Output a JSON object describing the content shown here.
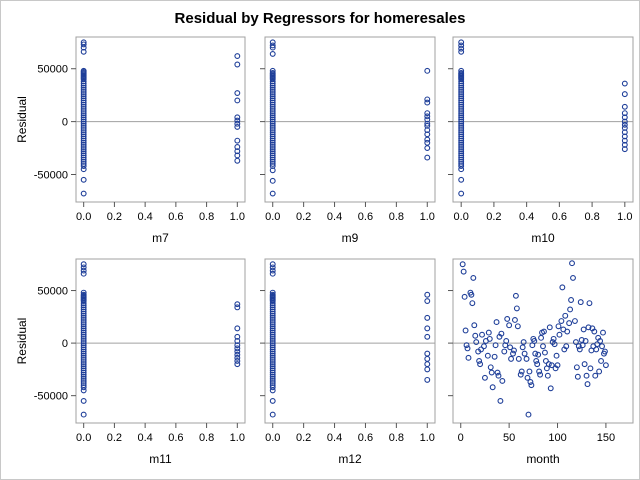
{
  "title": "Residual by Regressors for homeresales",
  "chart_data": [
    {
      "type": "scatter",
      "xlabel": "m7",
      "ylabel": "Residual",
      "xlim": [
        -0.05,
        1.05
      ],
      "ylim": [
        -76000,
        80000
      ],
      "xticks": [
        "0.0",
        "0.2",
        "0.4",
        "0.6",
        "0.8",
        "1.0"
      ],
      "yticks": [
        "-50000",
        "0",
        "50000"
      ],
      "reference_line_y": 0,
      "points": {
        "x0": [
          75000,
          73000,
          70000,
          66000,
          48000,
          47000,
          46000,
          45000,
          44000,
          43000,
          42000,
          41000,
          40000,
          38000,
          36000,
          34000,
          32000,
          30000,
          28000,
          26000,
          24000,
          22000,
          20000,
          18000,
          16000,
          14000,
          12000,
          10000,
          8000,
          6000,
          4000,
          2000,
          0,
          -2000,
          -4000,
          -6000,
          -8000,
          -10000,
          -12000,
          -14000,
          -16000,
          -18000,
          -20000,
          -22000,
          -24000,
          -26000,
          -28000,
          -30000,
          -32000,
          -34000,
          -36000,
          -38000,
          -40000,
          -42000,
          -45000,
          -55000,
          -68000
        ],
        "x1": [
          62000,
          54000,
          27000,
          20000,
          4000,
          1000,
          -2000,
          -5000,
          -18000,
          -24000,
          -28000,
          -32000,
          -37000
        ]
      }
    },
    {
      "type": "scatter",
      "xlabel": "m9",
      "ylabel": "",
      "xlim": [
        -0.05,
        1.05
      ],
      "ylim": [
        -76000,
        80000
      ],
      "xticks": [
        "0.0",
        "0.2",
        "0.4",
        "0.6",
        "0.8",
        "1.0"
      ],
      "yticks": [],
      "reference_line_y": 0,
      "points": {
        "x0": [
          75000,
          72000,
          70000,
          64000,
          48000,
          46000,
          45000,
          44000,
          43000,
          42000,
          41000,
          40000,
          38000,
          36000,
          34000,
          32000,
          30000,
          28000,
          26000,
          24000,
          22000,
          20000,
          18000,
          16000,
          14000,
          12000,
          10000,
          8000,
          6000,
          4000,
          2000,
          0,
          -2000,
          -4000,
          -6000,
          -8000,
          -10000,
          -12000,
          -14000,
          -16000,
          -18000,
          -20000,
          -22000,
          -24000,
          -26000,
          -28000,
          -30000,
          -32000,
          -34000,
          -36000,
          -38000,
          -40000,
          -42000,
          -46000,
          -56000,
          -68000
        ],
        "x1": [
          48000,
          21000,
          18000,
          8000,
          5000,
          2000,
          -2000,
          -4000,
          -8000,
          -12000,
          -17000,
          -20000,
          -25000,
          -34000
        ]
      }
    },
    {
      "type": "scatter",
      "xlabel": "m10",
      "ylabel": "",
      "xlim": [
        -0.05,
        1.05
      ],
      "ylim": [
        -76000,
        80000
      ],
      "xticks": [
        "0.0",
        "0.2",
        "0.4",
        "0.6",
        "0.8",
        "1.0"
      ],
      "yticks": [],
      "reference_line_y": 0,
      "points": {
        "x0": [
          75000,
          72000,
          69000,
          66000,
          48000,
          46000,
          45000,
          44000,
          43000,
          42000,
          41000,
          40000,
          38000,
          36000,
          34000,
          32000,
          30000,
          28000,
          26000,
          24000,
          22000,
          20000,
          18000,
          16000,
          14000,
          12000,
          10000,
          8000,
          6000,
          4000,
          2000,
          0,
          -2000,
          -4000,
          -6000,
          -8000,
          -10000,
          -12000,
          -14000,
          -16000,
          -18000,
          -20000,
          -22000,
          -24000,
          -26000,
          -28000,
          -30000,
          -32000,
          -34000,
          -36000,
          -38000,
          -40000,
          -42000,
          -45000,
          -55000,
          -68000
        ],
        "x1": [
          36000,
          26000,
          14000,
          8000,
          4000,
          0,
          -3000,
          -6000,
          -10000,
          -14000,
          -18000,
          -22000,
          -26000
        ]
      }
    },
    {
      "type": "scatter",
      "xlabel": "m11",
      "ylabel": "Residual",
      "xlim": [
        -0.05,
        1.05
      ],
      "ylim": [
        -76000,
        80000
      ],
      "xticks": [
        "0.0",
        "0.2",
        "0.4",
        "0.6",
        "0.8",
        "1.0"
      ],
      "yticks": [
        "-50000",
        "0",
        "50000"
      ],
      "reference_line_y": 0,
      "points": {
        "x0": [
          75000,
          72000,
          69000,
          66000,
          48000,
          46000,
          45000,
          44000,
          43000,
          42000,
          41000,
          40000,
          38000,
          36000,
          34000,
          32000,
          30000,
          28000,
          26000,
          24000,
          22000,
          20000,
          18000,
          16000,
          14000,
          12000,
          10000,
          8000,
          6000,
          4000,
          2000,
          0,
          -2000,
          -4000,
          -6000,
          -8000,
          -10000,
          -12000,
          -14000,
          -16000,
          -18000,
          -20000,
          -22000,
          -24000,
          -26000,
          -28000,
          -30000,
          -32000,
          -34000,
          -36000,
          -38000,
          -40000,
          -42000,
          -45000,
          -55000,
          -68000
        ],
        "x1": [
          37000,
          34000,
          14000,
          6000,
          2000,
          -2000,
          -5000,
          -8000,
          -11000,
          -14000,
          -17000,
          -20000
        ]
      }
    },
    {
      "type": "scatter",
      "xlabel": "m12",
      "ylabel": "",
      "xlim": [
        -0.05,
        1.05
      ],
      "ylim": [
        -76000,
        80000
      ],
      "xticks": [
        "0.0",
        "0.2",
        "0.4",
        "0.6",
        "0.8",
        "1.0"
      ],
      "yticks": [],
      "reference_line_y": 0,
      "points": {
        "x0": [
          75000,
          72000,
          69000,
          66000,
          48000,
          46000,
          45000,
          44000,
          43000,
          42000,
          41000,
          40000,
          38000,
          36000,
          34000,
          32000,
          30000,
          28000,
          26000,
          24000,
          22000,
          20000,
          18000,
          16000,
          14000,
          12000,
          10000,
          8000,
          6000,
          4000,
          2000,
          0,
          -2000,
          -4000,
          -6000,
          -8000,
          -10000,
          -12000,
          -14000,
          -16000,
          -18000,
          -20000,
          -22000,
          -24000,
          -26000,
          -28000,
          -30000,
          -32000,
          -34000,
          -36000,
          -38000,
          -40000,
          -42000,
          -45000,
          -55000,
          -68000
        ],
        "x1": [
          46000,
          40000,
          24000,
          14000,
          6000,
          -10000,
          -15000,
          -20000,
          -25000,
          -35000
        ]
      }
    },
    {
      "type": "scatter",
      "xlabel": "month",
      "ylabel": "",
      "xlim": [
        -8,
        178
      ],
      "ylim": [
        -76000,
        80000
      ],
      "xticks": [
        "0",
        "50",
        "100",
        "150"
      ],
      "xtick_values": [
        0,
        50,
        100,
        150
      ],
      "yticks": [],
      "reference_line_y": 0,
      "points_xy": [
        [
          2,
          75000
        ],
        [
          3,
          68000
        ],
        [
          4,
          44000
        ],
        [
          5,
          12000
        ],
        [
          6,
          -2000
        ],
        [
          7,
          -5000
        ],
        [
          8,
          -14000
        ],
        [
          10,
          48000
        ],
        [
          11,
          46000
        ],
        [
          12,
          38000
        ],
        [
          13,
          62000
        ],
        [
          14,
          17000
        ],
        [
          15,
          7000
        ],
        [
          16,
          1000
        ],
        [
          18,
          -8000
        ],
        [
          19,
          -17000
        ],
        [
          20,
          -20000
        ],
        [
          21,
          -6000
        ],
        [
          22,
          8000
        ],
        [
          24,
          -3000
        ],
        [
          25,
          -33000
        ],
        [
          26,
          2000
        ],
        [
          28,
          -12000
        ],
        [
          29,
          10000
        ],
        [
          30,
          4000
        ],
        [
          31,
          -23000
        ],
        [
          32,
          -28000
        ],
        [
          33,
          -42000
        ],
        [
          35,
          -13000
        ],
        [
          36,
          -2000
        ],
        [
          37,
          20000
        ],
        [
          38,
          -28000
        ],
        [
          39,
          -31000
        ],
        [
          40,
          6000
        ],
        [
          41,
          -55000
        ],
        [
          42,
          9000
        ],
        [
          43,
          -36000
        ],
        [
          45,
          -8000
        ],
        [
          46,
          -2000
        ],
        [
          47,
          2000
        ],
        [
          48,
          23000
        ],
        [
          50,
          17000
        ],
        [
          51,
          -4000
        ],
        [
          52,
          -15000
        ],
        [
          54,
          -10000
        ],
        [
          55,
          -7000
        ],
        [
          56,
          22000
        ],
        [
          57,
          45000
        ],
        [
          58,
          33000
        ],
        [
          59,
          16000
        ],
        [
          60,
          -15000
        ],
        [
          62,
          -30000
        ],
        [
          63,
          -27000
        ],
        [
          64,
          -4000
        ],
        [
          65,
          1000
        ],
        [
          66,
          -10000
        ],
        [
          68,
          -15000
        ],
        [
          69,
          -33000
        ],
        [
          70,
          -68000
        ],
        [
          71,
          -27000
        ],
        [
          72,
          -37000
        ],
        [
          73,
          -40000
        ],
        [
          74,
          -2000
        ],
        [
          75,
          4000
        ],
        [
          76,
          2000
        ],
        [
          77,
          -10000
        ],
        [
          78,
          -17000
        ],
        [
          79,
          -20000
        ],
        [
          80,
          -11000
        ],
        [
          81,
          -27000
        ],
        [
          82,
          -30000
        ],
        [
          83,
          5000
        ],
        [
          84,
          10000
        ],
        [
          85,
          -3000
        ],
        [
          86,
          11000
        ],
        [
          87,
          -9000
        ],
        [
          88,
          -17000
        ],
        [
          89,
          -24000
        ],
        [
          90,
          -31000
        ],
        [
          91,
          -20000
        ],
        [
          92,
          15000
        ],
        [
          93,
          -43000
        ],
        [
          94,
          -21000
        ],
        [
          95,
          1000
        ],
        [
          96,
          4000
        ],
        [
          97,
          -1000
        ],
        [
          98,
          -24000
        ],
        [
          99,
          -12000
        ],
        [
          100,
          -21000
        ],
        [
          101,
          16000
        ],
        [
          102,
          8000
        ],
        [
          104,
          21000
        ],
        [
          105,
          53000
        ],
        [
          106,
          13000
        ],
        [
          107,
          -6000
        ],
        [
          108,
          26000
        ],
        [
          109,
          -3000
        ],
        [
          110,
          11000
        ],
        [
          112,
          19000
        ],
        [
          113,
          32000
        ],
        [
          114,
          41000
        ],
        [
          115,
          76000
        ],
        [
          116,
          62000
        ],
        [
          118,
          21000
        ],
        [
          119,
          1000
        ],
        [
          120,
          -23000
        ],
        [
          121,
          -32000
        ],
        [
          122,
          -3000
        ],
        [
          123,
          -6000
        ],
        [
          124,
          39000
        ],
        [
          125,
          3000
        ],
        [
          126,
          -2000
        ],
        [
          127,
          13000
        ],
        [
          128,
          -20000
        ],
        [
          129,
          2000
        ],
        [
          130,
          -31000
        ],
        [
          131,
          -39000
        ],
        [
          132,
          15000
        ],
        [
          133,
          38000
        ],
        [
          134,
          -24000
        ],
        [
          135,
          -7000
        ],
        [
          136,
          14000
        ],
        [
          137,
          -3000
        ],
        [
          138,
          11000
        ],
        [
          139,
          -31000
        ],
        [
          140,
          -6000
        ],
        [
          141,
          -1000
        ],
        [
          142,
          5000
        ],
        [
          143,
          -27000
        ],
        [
          144,
          2000
        ],
        [
          145,
          -17000
        ],
        [
          146,
          -3000
        ],
        [
          147,
          10000
        ],
        [
          148,
          -10000
        ],
        [
          149,
          -8000
        ],
        [
          150,
          -21000
        ]
      ]
    }
  ]
}
